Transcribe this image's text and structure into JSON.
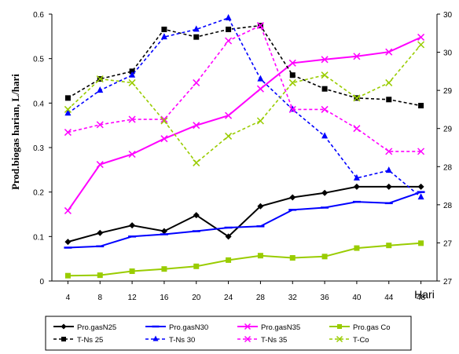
{
  "chart_data": {
    "type": "line",
    "xlabel": "Hari",
    "ylabel": "Prod.biogas harian, L/hari",
    "x": [
      4,
      8,
      12,
      16,
      20,
      24,
      28,
      32,
      36,
      40,
      44,
      48
    ],
    "y_left_ticks": [
      "0",
      "0.1",
      "0.2",
      "0.3",
      "0.4",
      "0.5",
      "0.6"
    ],
    "ylim_left": [
      0,
      0.6
    ],
    "y_right_ticks": [
      "27",
      "27",
      "28",
      "28",
      "29",
      "29",
      "30",
      "30"
    ],
    "ylim_right": [
      27,
      30.5
    ],
    "grid": false,
    "legend_position": "bottom",
    "series": [
      {
        "name": "Pro.gasN25",
        "axis": "left",
        "color": "#000000",
        "dash": "solid",
        "marker": "diamond",
        "values": [
          0.088,
          0.108,
          0.125,
          0.112,
          0.148,
          0.1,
          0.168,
          0.188,
          0.198,
          0.212,
          0.212,
          0.212
        ]
      },
      {
        "name": "Pro.gasN30",
        "axis": "left",
        "color": "#0000ff",
        "dash": "solid",
        "marker": "dash",
        "values": [
          0.075,
          0.078,
          0.1,
          0.105,
          0.112,
          0.12,
          0.123,
          0.16,
          0.165,
          0.178,
          0.175,
          0.2
        ]
      },
      {
        "name": "Pro.gasN35",
        "axis": "left",
        "color": "#ff00ff",
        "dash": "solid",
        "marker": "x",
        "values": [
          0.158,
          0.262,
          0.285,
          0.32,
          0.35,
          0.372,
          0.432,
          0.49,
          0.498,
          0.505,
          0.515,
          0.548
        ]
      },
      {
        "name": "Pro.gas Co",
        "axis": "left",
        "color": "#99cc00",
        "dash": "solid",
        "marker": "square",
        "values": [
          0.012,
          0.013,
          0.022,
          0.027,
          0.033,
          0.047,
          0.057,
          0.052,
          0.055,
          0.074,
          0.08,
          0.085
        ]
      },
      {
        "name": "T-Ns 25",
        "axis": "right",
        "color": "#000000",
        "dash": "dash",
        "marker": "square",
        "values": [
          29.4,
          29.65,
          29.75,
          30.3,
          30.2,
          30.3,
          30.35,
          29.7,
          29.52,
          29.4,
          29.38,
          29.3
        ]
      },
      {
        "name": "T-Ns 30",
        "axis": "right",
        "color": "#0000ff",
        "dash": "dash",
        "marker": "triangle",
        "values": [
          29.2,
          29.5,
          29.7,
          30.2,
          30.3,
          30.45,
          29.65,
          29.25,
          28.9,
          28.35,
          28.45,
          28.1
        ]
      },
      {
        "name": "T-Ns 35",
        "axis": "right",
        "color": "#ff00ff",
        "dash": "dash",
        "marker": "x",
        "values": [
          28.95,
          29.05,
          29.12,
          29.12,
          29.6,
          30.15,
          30.35,
          29.25,
          29.25,
          29.0,
          28.7,
          28.7
        ]
      },
      {
        "name": "T-Co",
        "axis": "right",
        "color": "#99cc00",
        "dash": "dash",
        "marker": "x",
        "values": [
          29.25,
          29.65,
          29.6,
          29.1,
          28.55,
          28.9,
          29.1,
          29.6,
          29.7,
          29.4,
          29.6,
          30.1
        ]
      }
    ]
  }
}
